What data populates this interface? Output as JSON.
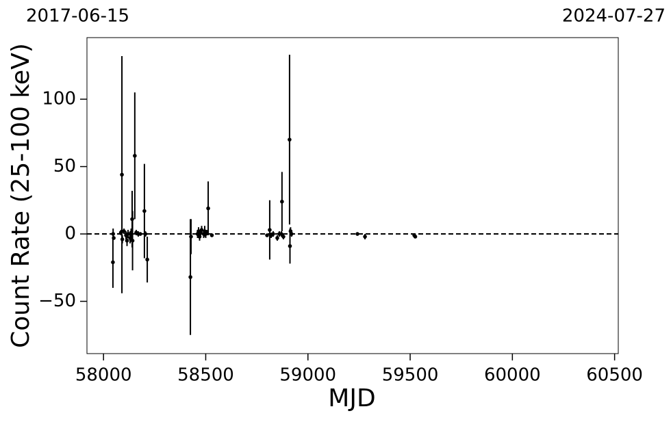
{
  "chart_data": {
    "type": "scatter",
    "xlabel": "MJD",
    "ylabel": "Count Rate (25-100 keV)",
    "annotations": [
      "2017-06-15",
      "2024-07-27"
    ],
    "xlim": [
      57919,
      60518
    ],
    "ylim": [
      -88.8,
      145.7
    ],
    "xticks": [
      58000,
      58500,
      59000,
      59500,
      60000,
      60500
    ],
    "yticks": [
      {
        "value": -50,
        "label": "−50"
      },
      0,
      50,
      100
    ],
    "reference_line": 0,
    "color": "#000000",
    "series": [
      {
        "name": "Count Rate",
        "x": [
          58046,
          58047,
          58050,
          58085,
          58090,
          58092,
          58100,
          58110,
          58115,
          58120,
          58130,
          58135,
          58140,
          58142,
          58153,
          58160,
          58170,
          58180,
          58200,
          58205,
          58214,
          58425,
          58428,
          58460,
          58465,
          58470,
          58475,
          58480,
          58490,
          58495,
          58500,
          58505,
          58512,
          58530,
          58800,
          58813,
          58820,
          58830,
          58850,
          58860,
          58870,
          58873,
          58880,
          58910,
          58912,
          58915,
          58920,
          59242,
          59279,
          59520,
          59525
        ],
        "values": [
          -21,
          0,
          -3,
          1,
          44,
          -4,
          2,
          -1,
          -5,
          0,
          -3,
          1,
          11,
          -5,
          58,
          1,
          0,
          0,
          17,
          0,
          -19,
          -32,
          -2,
          0,
          2,
          -2,
          1,
          3,
          0,
          2,
          0,
          1,
          19,
          -1,
          -1,
          3,
          -1,
          0,
          -3,
          0,
          0,
          24,
          -2,
          70,
          -9,
          2,
          0,
          0,
          -2,
          -1,
          -2
        ],
        "errors": [
          19,
          4,
          1,
          2,
          88,
          3,
          2,
          3,
          4,
          3,
          4,
          3,
          21,
          22,
          47,
          2,
          2,
          1,
          35,
          2,
          17,
          43,
          13,
          3,
          3,
          3,
          2,
          3,
          3,
          4,
          3,
          2,
          20,
          1,
          1,
          22,
          2,
          2,
          2,
          2,
          2,
          22,
          2,
          63,
          13,
          3,
          2,
          1,
          2,
          1,
          1
        ]
      }
    ]
  }
}
